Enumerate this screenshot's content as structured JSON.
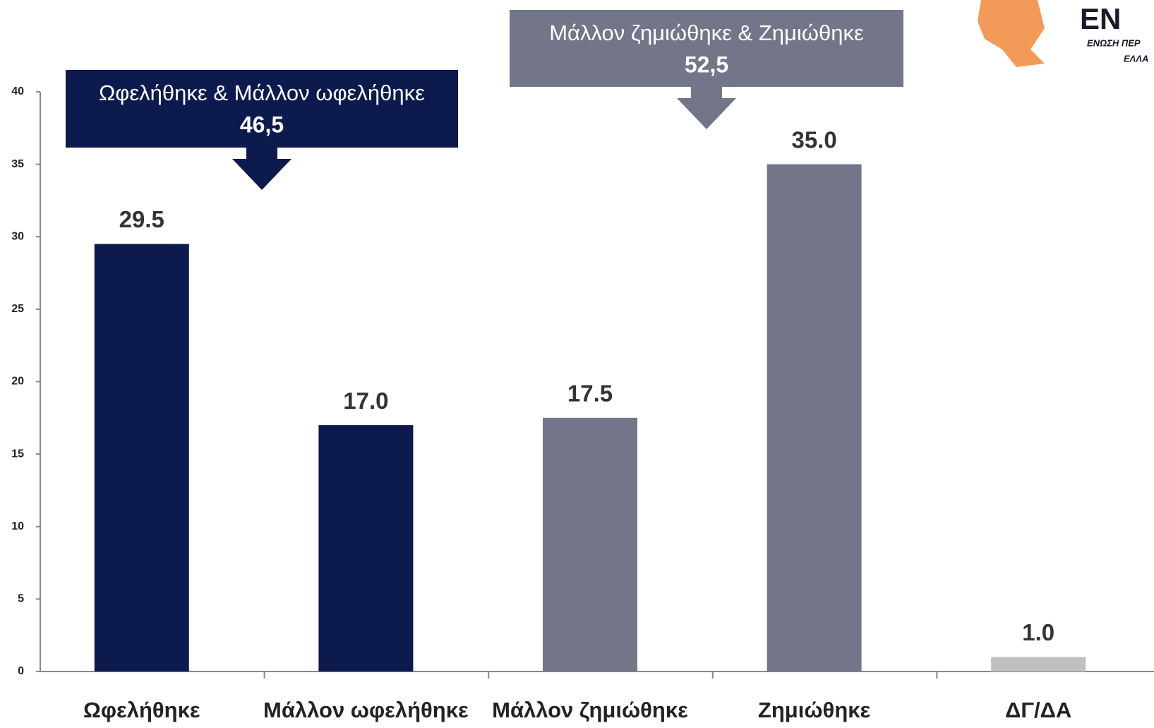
{
  "chart_data": {
    "type": "bar",
    "categories": [
      "Ωφελήθηκε",
      "Μάλλον ωφελήθηκε",
      "Μάλλον ζημιώθηκε",
      "Ζημιώθηκε",
      "ΔΓ/ΔΑ"
    ],
    "values": [
      29.5,
      17,
      17.5,
      35,
      1
    ],
    "value_labels": [
      "29.5",
      "17.0",
      "17.5",
      "35.0",
      "1.0"
    ],
    "colors": [
      "#0c1a4e",
      "#0c1a4e",
      "#737589",
      "#737589",
      "#bfbfbf"
    ],
    "ylim": [
      0,
      40
    ],
    "yticks": [
      0,
      5,
      10,
      15,
      20,
      25,
      30,
      35,
      40
    ],
    "annotations": [
      {
        "text": "Ωφελήθηκε & Μάλλον ωφελήθηκε",
        "total": "46,5",
        "color": "#0c1a4e"
      },
      {
        "text": "Μάλλον ζημιώθηκε & Ζημιώθηκε",
        "total": "52,5",
        "color": "#737589"
      }
    ]
  },
  "logo": {
    "mark": "EN",
    "line1": "ΕΝΩΣΗ ΠΕΡ",
    "line2": "ΕΛΛΑ"
  }
}
